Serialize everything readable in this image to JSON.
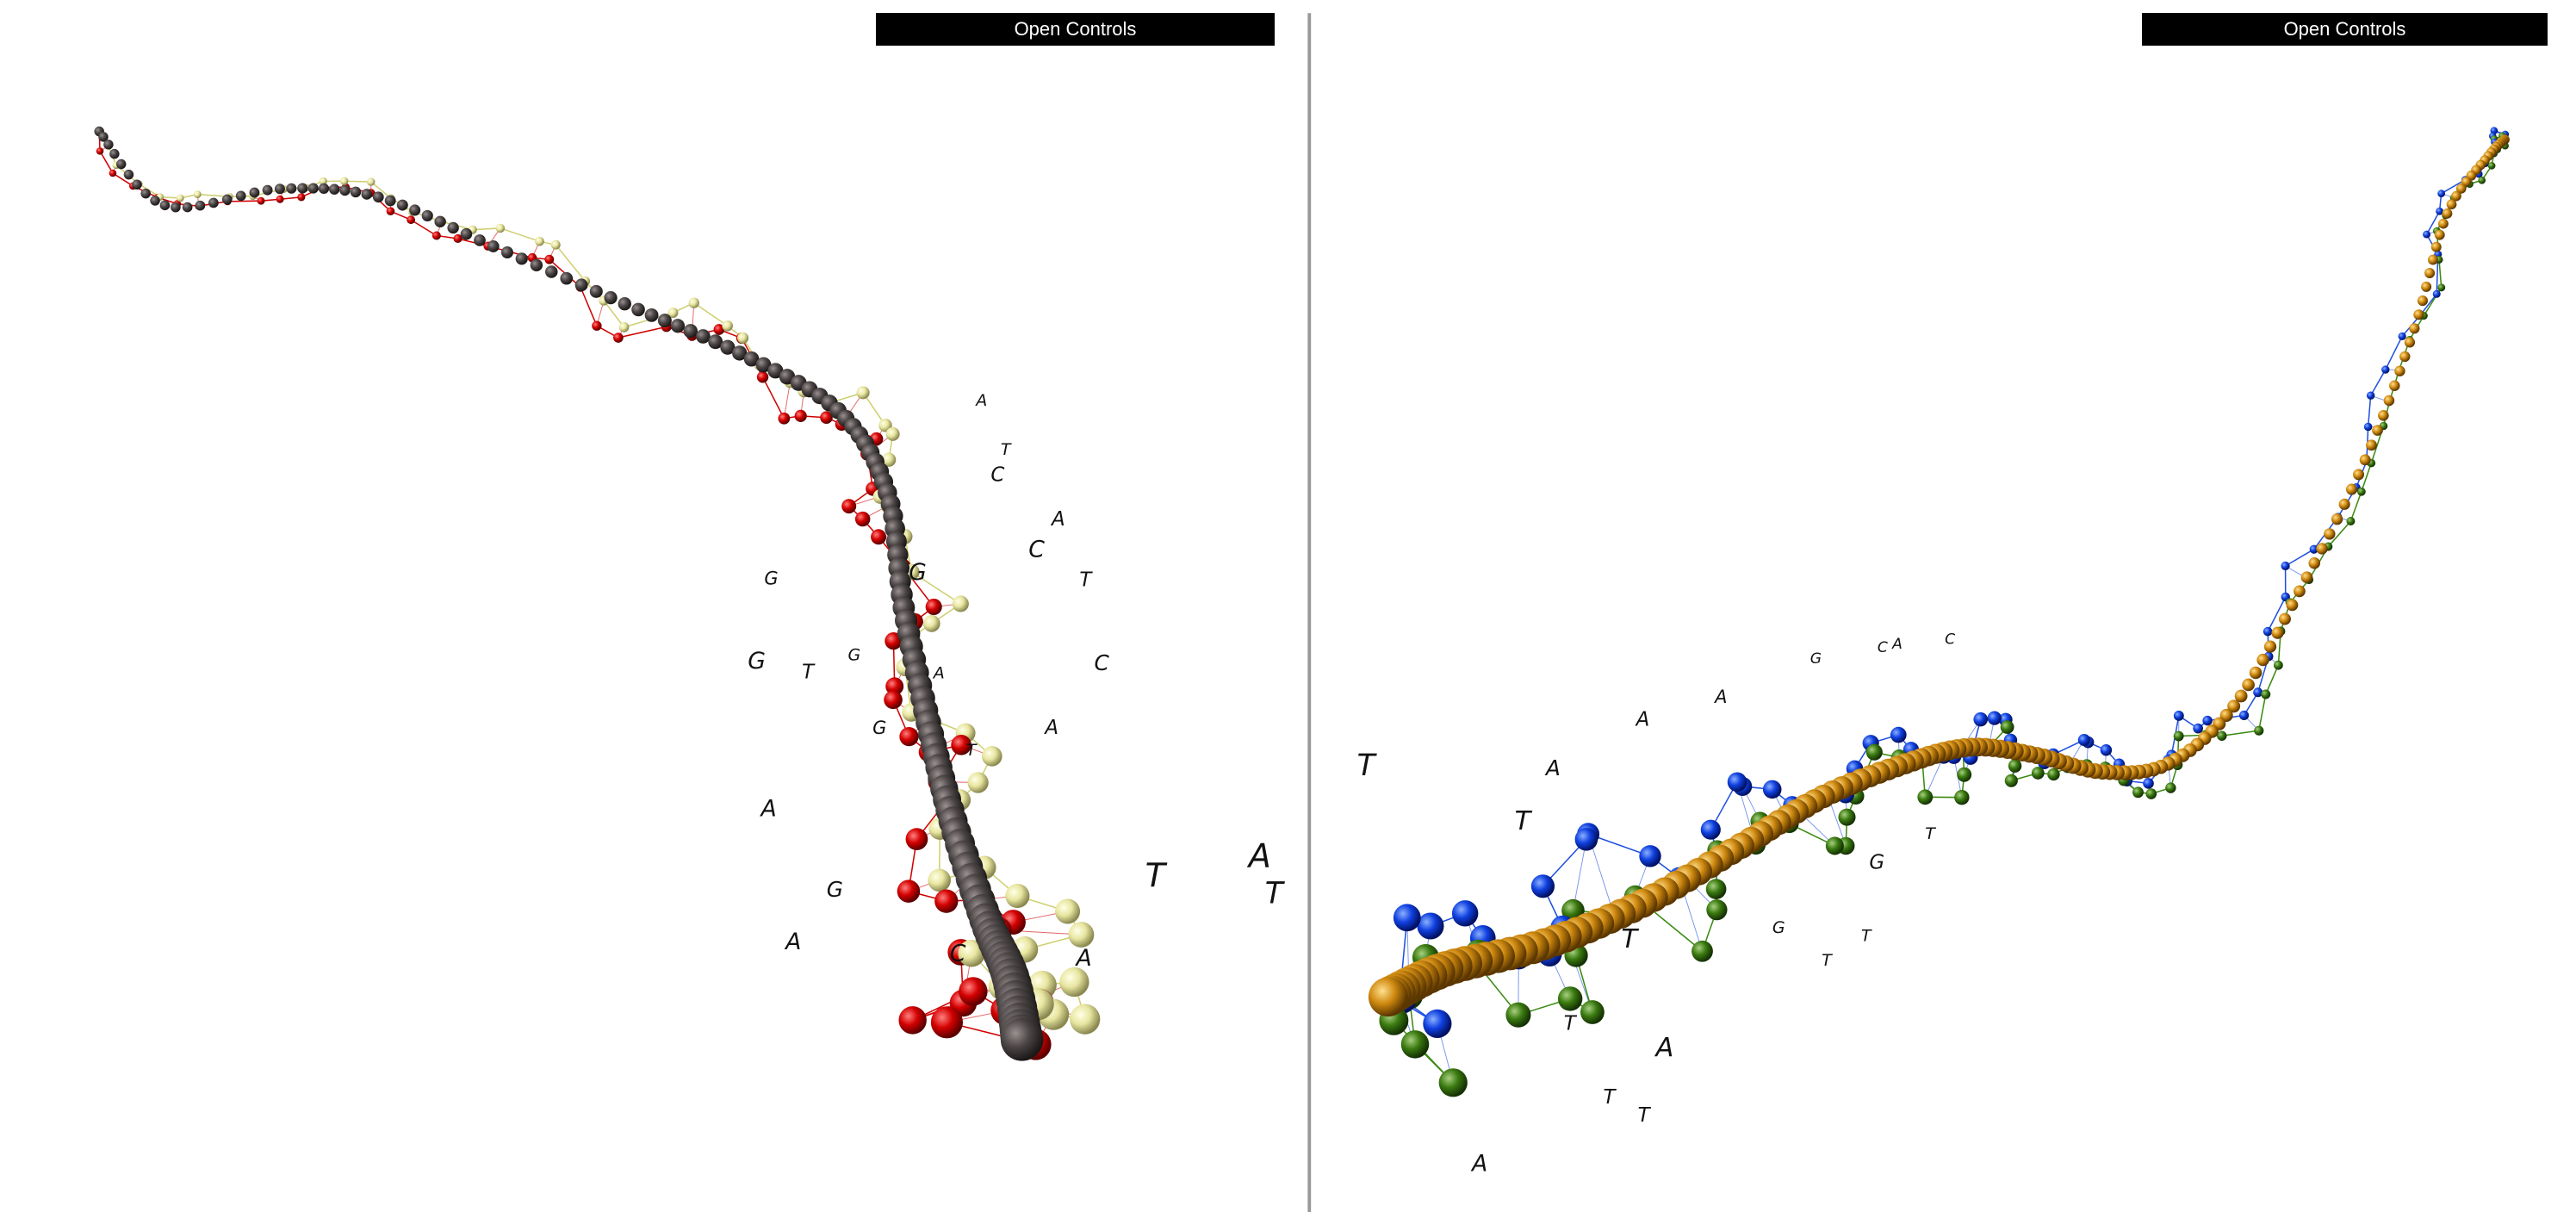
{
  "controls": {
    "left": "Open Controls",
    "right": "Open Controls"
  },
  "left_labels": [
    "A",
    "T",
    "T",
    "A",
    "C",
    "G",
    "A",
    "A",
    "G",
    "T",
    "G",
    "C",
    "A",
    "T",
    "C",
    "A",
    "G",
    "G",
    "G",
    "A",
    "T",
    "C",
    "T",
    "A"
  ],
  "right_labels": [
    "T",
    "A",
    "T",
    "A",
    "A",
    "T",
    "T",
    "T",
    "T",
    "A",
    "A",
    "G",
    "C",
    "A",
    "C",
    "T",
    "T",
    "G",
    "T",
    "G"
  ]
}
